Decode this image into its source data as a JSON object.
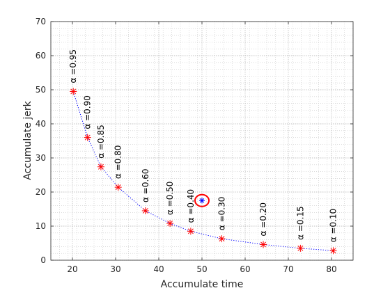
{
  "chart_data": {
    "type": "scatter",
    "title": "",
    "xlabel": "Accumulate time",
    "ylabel": "Accumulate jerk",
    "xlim": [
      15,
      85
    ],
    "ylim": [
      0,
      70
    ],
    "xticks": [
      20,
      30,
      40,
      50,
      60,
      70,
      80
    ],
    "yticks": [
      0,
      10,
      20,
      30,
      40,
      50,
      60,
      70
    ],
    "grid": true,
    "minor_grid": true,
    "series": [
      {
        "marker": "asterisk",
        "color": "#ff0000",
        "line": "dotted",
        "line_color": "#0000ff",
        "points": [
          {
            "x": 20.2,
            "y": 49.5,
            "label": "α =0.95"
          },
          {
            "x": 23.5,
            "y": 36.0,
            "label": "α =0.90"
          },
          {
            "x": 26.6,
            "y": 27.4,
            "label": "α =0.85"
          },
          {
            "x": 30.6,
            "y": 21.4,
            "label": "α =0.80"
          },
          {
            "x": 36.9,
            "y": 14.5,
            "label": "α =0.60"
          },
          {
            "x": 42.6,
            "y": 10.8,
            "label": "α =0.50"
          },
          {
            "x": 47.4,
            "y": 8.5,
            "label": "α =0.40"
          },
          {
            "x": 54.6,
            "y": 6.3,
            "label": "α =0.30"
          },
          {
            "x": 64.2,
            "y": 4.6,
            "label": "α =0.20"
          },
          {
            "x": 72.8,
            "y": 3.5,
            "label": "α =0.15"
          },
          {
            "x": 80.4,
            "y": 2.8,
            "label": "α =0.10"
          }
        ]
      }
    ],
    "highlight": {
      "x": 50.0,
      "y": 17.5,
      "marker": "asterisk",
      "color": "#0000ff",
      "circle_color": "#ff0000"
    }
  }
}
